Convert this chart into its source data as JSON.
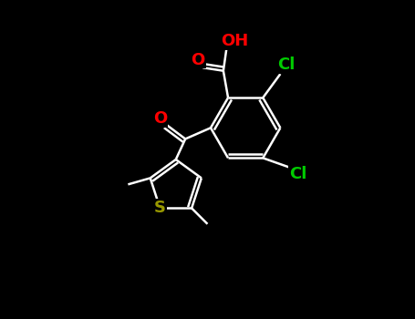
{
  "background_color": "#000000",
  "bond_color": "#ffffff",
  "bond_width": 1.8,
  "atom_colors": {
    "O": "#ff0000",
    "Cl": "#00cc00",
    "S": "#999900",
    "C": "#ffffff",
    "H": "#ffffff"
  },
  "font_size": 13,
  "xlim": [
    0,
    10
  ],
  "ylim": [
    0,
    10
  ],
  "figsize": [
    4.55,
    3.5
  ],
  "dpi": 100
}
